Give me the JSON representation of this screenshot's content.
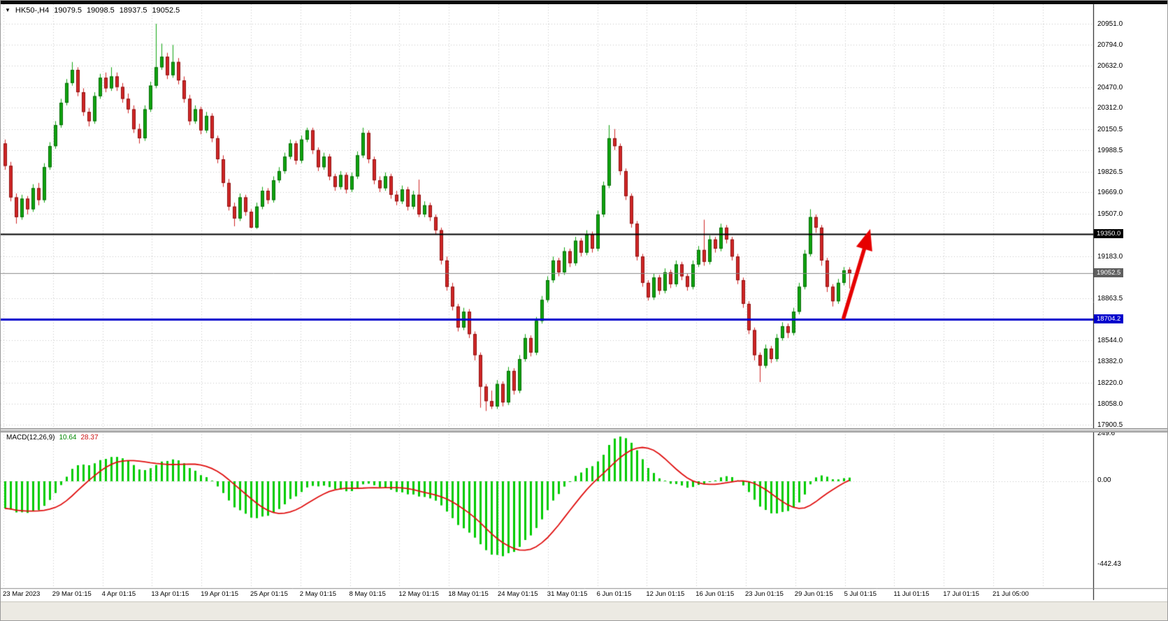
{
  "header": {
    "symbol": "HK50-,H4",
    "open": "19079.5",
    "high": "19098.5",
    "low": "18937.5",
    "close": "19052.5",
    "dropdown_icon": "▼"
  },
  "colors": {
    "bull": "#0fa30f",
    "bull_border": "#066c06",
    "bear": "#cf2626",
    "bear_border": "#8f1010",
    "grid": "#c6c6c6",
    "macd_hist": "#00cc00",
    "macd_signal": "#e01010",
    "hline_black": "#000000",
    "hline_blue": "#0000cc",
    "current_price_line": "#8a8a8a",
    "axis_separator": "#000000",
    "arrow": "#e60000"
  },
  "price_axis": {
    "ticks": [
      {
        "label": "20951.0",
        "value": 20951.0
      },
      {
        "label": "20794.0",
        "value": 20794.0
      },
      {
        "label": "20632.0",
        "value": 20632.0
      },
      {
        "label": "20470.0",
        "value": 20470.0
      },
      {
        "label": "20312.0",
        "value": 20312.0
      },
      {
        "label": "20150.5",
        "value": 20150.5
      },
      {
        "label": "19988.5",
        "value": 19988.5
      },
      {
        "label": "19826.5",
        "value": 19826.5
      },
      {
        "label": "19669.0",
        "value": 19669.0
      },
      {
        "label": "19507.0",
        "value": 19507.0
      },
      {
        "label": "19183.0",
        "value": 19183.0
      },
      {
        "label": "18863.5",
        "value": 18863.5
      },
      {
        "label": "18544.0",
        "value": 18544.0
      },
      {
        "label": "18382.0",
        "value": 18382.0
      },
      {
        "label": "18220.0",
        "value": 18220.0
      },
      {
        "label": "18058.0",
        "value": 18058.0
      },
      {
        "label": "17900.5",
        "value": 17900.5
      }
    ]
  },
  "time_axis": {
    "labels": [
      "23 Mar 2023",
      "29 Mar 01:15",
      "4 Apr 01:15",
      "13 Apr 01:15",
      "19 Apr 01:15",
      "25 Apr 01:15",
      "2 May 01:15",
      "8 May 01:15",
      "12 May 01:15",
      "18 May 01:15",
      "24 May 01:15",
      "31 May 01:15",
      "6 Jun 01:15",
      "12 Jun 01:15",
      "16 Jun 01:15",
      "23 Jun 01:15",
      "29 Jun 01:15",
      "5 Jul 01:15",
      "11 Jul 01:15",
      "17 Jul 01:15",
      "21 Jul 05:00"
    ]
  },
  "macd": {
    "label": "MACD(12,26,9)",
    "value_main": "10.64",
    "value_signal": "28.37",
    "params": {
      "fast": 12,
      "slow": 26,
      "signal": 9
    },
    "axis": {
      "top": "249.6",
      "zero": "0.00",
      "bottom": "-442.43"
    },
    "start_value": -170
  },
  "chart_data": {
    "type": "candlestick",
    "title": "HK50-,H4",
    "timeframe": "H4",
    "ylim": [
      17900.5,
      20951.0
    ],
    "macd_ylim": [
      -442.43,
      249.6
    ],
    "grid": "dotted",
    "x_labels": [
      "23 Mar 2023",
      "29 Mar 01:15",
      "4 Apr 01:15",
      "13 Apr 01:15",
      "19 Apr 01:15",
      "25 Apr 01:15",
      "2 May 01:15",
      "8 May 01:15",
      "12 May 01:15",
      "18 May 01:15",
      "24 May 01:15",
      "31 May 01:15",
      "6 Jun 01:15",
      "12 Jun 01:15",
      "16 Jun 01:15",
      "23 Jun 01:15",
      "29 Jun 01:15",
      "5 Jul 01:15",
      "11 Jul 01:15",
      "17 Jul 01:15",
      "21 Jul 05:00"
    ],
    "hlines": [
      {
        "price": 19350.0,
        "label": "19350.0",
        "color": "#000000",
        "width": 2,
        "badge": "#000000"
      },
      {
        "price": 19052.5,
        "label": "19052.5",
        "color": "#8a8a8a",
        "width": 1,
        "badge": "#5f5f5f"
      },
      {
        "price": 18704.2,
        "label": "18704.2",
        "color": "#0000cc",
        "width": 3,
        "badge": "#0000cc"
      }
    ],
    "arrow": {
      "tail_x": 1206,
      "tail_price": 18715,
      "tip_x": 1244,
      "tip_price": 19390,
      "color": "#e60000"
    },
    "ohlc": [
      [
        20040,
        20070,
        19840,
        19870
      ],
      [
        19870,
        19900,
        19600,
        19630
      ],
      [
        19630,
        19660,
        19430,
        19480
      ],
      [
        19480,
        19650,
        19460,
        19620
      ],
      [
        19620,
        19640,
        19500,
        19540
      ],
      [
        19540,
        19730,
        19520,
        19700
      ],
      [
        19700,
        19740,
        19570,
        19610
      ],
      [
        19610,
        19890,
        19590,
        19860
      ],
      [
        19860,
        20050,
        19840,
        20020
      ],
      [
        20020,
        20210,
        20000,
        20180
      ],
      [
        20180,
        20380,
        20160,
        20350
      ],
      [
        20350,
        20530,
        20330,
        20500
      ],
      [
        20500,
        20660,
        20480,
        20600
      ],
      [
        20600,
        20620,
        20400,
        20430
      ],
      [
        20430,
        20460,
        20250,
        20280
      ],
      [
        20280,
        20310,
        20170,
        20210
      ],
      [
        20210,
        20430,
        20190,
        20400
      ],
      [
        20400,
        20570,
        20380,
        20540
      ],
      [
        20540,
        20580,
        20430,
        20460
      ],
      [
        20460,
        20620,
        20440,
        20550
      ],
      [
        20550,
        20580,
        20440,
        20470
      ],
      [
        20470,
        20500,
        20350,
        20380
      ],
      [
        20380,
        20420,
        20270,
        20300
      ],
      [
        20300,
        20330,
        20120,
        20150
      ],
      [
        20150,
        20190,
        20040,
        20080
      ],
      [
        20080,
        20330,
        20060,
        20300
      ],
      [
        20300,
        20510,
        20280,
        20480
      ],
      [
        20480,
        20951,
        20460,
        20620
      ],
      [
        20620,
        20800,
        20600,
        20700
      ],
      [
        20700,
        20730,
        20530,
        20560
      ],
      [
        20560,
        20790,
        20540,
        20660
      ],
      [
        20660,
        20690,
        20490,
        20520
      ],
      [
        20520,
        20550,
        20350,
        20380
      ],
      [
        20380,
        20410,
        20180,
        20210
      ],
      [
        20210,
        20330,
        20190,
        20300
      ],
      [
        20300,
        20320,
        20110,
        20140
      ],
      [
        20140,
        20280,
        20120,
        20250
      ],
      [
        20250,
        20270,
        20050,
        20080
      ],
      [
        20080,
        20100,
        19890,
        19920
      ],
      [
        19920,
        19950,
        19710,
        19740
      ],
      [
        19740,
        19770,
        19530,
        19560
      ],
      [
        19560,
        19590,
        19410,
        19470
      ],
      [
        19470,
        19660,
        19450,
        19630
      ],
      [
        19630,
        19650,
        19490,
        19520
      ],
      [
        19520,
        19540,
        19395,
        19400
      ],
      [
        19400,
        19590,
        19390,
        19560
      ],
      [
        19560,
        19710,
        19540,
        19680
      ],
      [
        19680,
        19700,
        19580,
        19610
      ],
      [
        19610,
        19790,
        19590,
        19760
      ],
      [
        19760,
        19860,
        19740,
        19830
      ],
      [
        19830,
        19970,
        19810,
        19940
      ],
      [
        19940,
        20070,
        19920,
        20040
      ],
      [
        20040,
        20060,
        19880,
        19910
      ],
      [
        19910,
        20100,
        19890,
        20070
      ],
      [
        20070,
        20160,
        20050,
        20140
      ],
      [
        20140,
        20160,
        19960,
        19990
      ],
      [
        19990,
        20010,
        19830,
        19860
      ],
      [
        19860,
        19970,
        19840,
        19940
      ],
      [
        19940,
        19960,
        19760,
        19790
      ],
      [
        19790,
        19810,
        19680,
        19710
      ],
      [
        19710,
        19830,
        19690,
        19800
      ],
      [
        19800,
        19820,
        19660,
        19690
      ],
      [
        19690,
        19820,
        19670,
        19790
      ],
      [
        19790,
        19980,
        19770,
        19950
      ],
      [
        19950,
        20160,
        19930,
        20120
      ],
      [
        20120,
        20140,
        19890,
        19920
      ],
      [
        19920,
        19940,
        19730,
        19760
      ],
      [
        19760,
        19790,
        19670,
        19700
      ],
      [
        19700,
        19820,
        19680,
        19790
      ],
      [
        19790,
        19810,
        19620,
        19650
      ],
      [
        19650,
        19680,
        19570,
        19600
      ],
      [
        19600,
        19720,
        19580,
        19690
      ],
      [
        19690,
        19710,
        19530,
        19560
      ],
      [
        19560,
        19680,
        19540,
        19650
      ],
      [
        19650,
        19765,
        19480,
        19500
      ],
      [
        19500,
        19600,
        19480,
        19570
      ],
      [
        19570,
        19590,
        19450,
        19480
      ],
      [
        19480,
        19500,
        19350,
        19380
      ],
      [
        19380,
        19400,
        19120,
        19150
      ],
      [
        19150,
        19180,
        18920,
        18950
      ],
      [
        18950,
        18980,
        18770,
        18800
      ],
      [
        18800,
        18820,
        18610,
        18640
      ],
      [
        18640,
        18790,
        18620,
        18760
      ],
      [
        18760,
        18780,
        18560,
        18590
      ],
      [
        18590,
        18610,
        18390,
        18430
      ],
      [
        18430,
        18450,
        18030,
        18190
      ],
      [
        18190,
        18210,
        18005,
        18080
      ],
      [
        18080,
        18160,
        18020,
        18040
      ],
      [
        18040,
        18240,
        18020,
        18210
      ],
      [
        18210,
        18230,
        18040,
        18070
      ],
      [
        18070,
        18340,
        18050,
        18310
      ],
      [
        18310,
        18330,
        18130,
        18160
      ],
      [
        18160,
        18430,
        18140,
        18400
      ],
      [
        18400,
        18590,
        18380,
        18560
      ],
      [
        18560,
        18580,
        18420,
        18450
      ],
      [
        18450,
        18720,
        18430,
        18690
      ],
      [
        18690,
        18880,
        18670,
        18850
      ],
      [
        18850,
        19030,
        18830,
        19000
      ],
      [
        19000,
        19180,
        18980,
        19150
      ],
      [
        19150,
        19170,
        19030,
        19060
      ],
      [
        19060,
        19250,
        19040,
        19220
      ],
      [
        19220,
        19240,
        19100,
        19130
      ],
      [
        19130,
        19330,
        19110,
        19300
      ],
      [
        19300,
        19320,
        19180,
        19210
      ],
      [
        19210,
        19380,
        19190,
        19350
      ],
      [
        19350,
        19370,
        19210,
        19240
      ],
      [
        19240,
        19530,
        19220,
        19500
      ],
      [
        19500,
        19750,
        19480,
        19720
      ],
      [
        19720,
        20180,
        19700,
        20080
      ],
      [
        20080,
        20150,
        19990,
        20020
      ],
      [
        20020,
        20040,
        19800,
        19830
      ],
      [
        19830,
        19850,
        19610,
        19640
      ],
      [
        19640,
        19660,
        19400,
        19430
      ],
      [
        19430,
        19450,
        19150,
        19180
      ],
      [
        19180,
        19200,
        18950,
        18980
      ],
      [
        18980,
        19000,
        18845,
        18870
      ],
      [
        18870,
        19050,
        18850,
        19020
      ],
      [
        19020,
        19040,
        18890,
        18920
      ],
      [
        18920,
        19090,
        18900,
        19060
      ],
      [
        19060,
        19080,
        18940,
        18970
      ],
      [
        18970,
        19150,
        18950,
        19120
      ],
      [
        19120,
        19140,
        19000,
        19030
      ],
      [
        19030,
        19050,
        18920,
        18950
      ],
      [
        18950,
        19150,
        18930,
        19120
      ],
      [
        19120,
        19260,
        19100,
        19230
      ],
      [
        19230,
        19460,
        19110,
        19140
      ],
      [
        19140,
        19340,
        19120,
        19310
      ],
      [
        19310,
        19330,
        19210,
        19240
      ],
      [
        19240,
        19430,
        19220,
        19400
      ],
      [
        19400,
        19420,
        19280,
        19310
      ],
      [
        19310,
        19330,
        19150,
        19180
      ],
      [
        19180,
        19200,
        18970,
        19000
      ],
      [
        19000,
        19020,
        18790,
        18820
      ],
      [
        18820,
        18840,
        18590,
        18620
      ],
      [
        18620,
        18640,
        18390,
        18430
      ],
      [
        18430,
        18450,
        18225,
        18350
      ],
      [
        18350,
        18510,
        18330,
        18480
      ],
      [
        18480,
        18500,
        18370,
        18400
      ],
      [
        18400,
        18590,
        18380,
        18560
      ],
      [
        18560,
        18680,
        18540,
        18650
      ],
      [
        18650,
        18670,
        18560,
        18600
      ],
      [
        18600,
        18790,
        18580,
        18760
      ],
      [
        18760,
        18980,
        18740,
        18950
      ],
      [
        18950,
        19230,
        18930,
        19200
      ],
      [
        19200,
        19540,
        19180,
        19480
      ],
      [
        19480,
        19500,
        19360,
        19400
      ],
      [
        19400,
        19420,
        19110,
        19150
      ],
      [
        19150,
        19170,
        18910,
        18950
      ],
      [
        18950,
        18970,
        18800,
        18840
      ],
      [
        18840,
        19010,
        18820,
        18980
      ],
      [
        18980,
        19100,
        18960,
        19075
      ],
      [
        19079.5,
        19098.5,
        18937.5,
        19052.5
      ]
    ]
  }
}
